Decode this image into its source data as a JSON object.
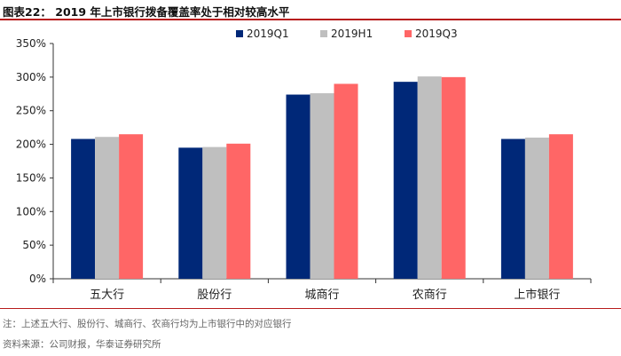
{
  "header": {
    "title": "图表22：  2019 年上市银行拨备覆盖率处于相对较高水平"
  },
  "chart_data": {
    "type": "bar",
    "title": "",
    "xlabel": "",
    "ylabel": "",
    "categories": [
      "五大行",
      "股份行",
      "城商行",
      "农商行",
      "上市银行"
    ],
    "series": [
      {
        "name": "2019Q1",
        "color": "#002878",
        "values": [
          208,
          195,
          274,
          293,
          208
        ]
      },
      {
        "name": "2019H1",
        "color": "#bfbfbf",
        "values": [
          211,
          196,
          276,
          301,
          210
        ]
      },
      {
        "name": "2019Q3",
        "color": "#ff6666",
        "values": [
          215,
          201,
          290,
          300,
          215
        ]
      }
    ],
    "ylim": [
      0,
      350
    ],
    "yticks": [
      0,
      50,
      100,
      150,
      200,
      250,
      300,
      350
    ],
    "ytick_labels": [
      "0%",
      "50%",
      "100%",
      "150%",
      "200%",
      "250%",
      "300%",
      "350%"
    ],
    "grid": false,
    "legend_position": "top-right"
  },
  "footer": {
    "note": "注：上述五大行、股份行、城商行、农商行均为上市银行中的对应银行",
    "source": "资料来源：公司财报，华泰证券研究所"
  }
}
